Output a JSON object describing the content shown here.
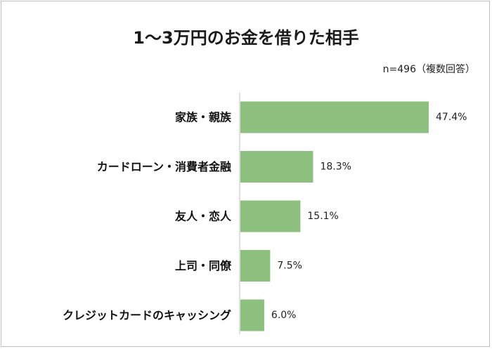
{
  "chart_data": {
    "type": "bar",
    "orientation": "horizontal",
    "title": "1〜3万円のお金を借りた相手",
    "note": "n=496（複数回答）",
    "categories": [
      "家族・親族",
      "カードローン・消費者金融",
      "友人・恋人",
      "上司・同僚",
      "クレジットカードのキャッシング"
    ],
    "values": [
      47.4,
      18.3,
      15.1,
      7.5,
      6.0
    ],
    "value_labels": [
      "47.4%",
      "18.3%",
      "15.1%",
      "7.5%",
      "6.0%"
    ],
    "unit": "%",
    "xlim": [
      0,
      50
    ],
    "grid": false,
    "legend": "none",
    "bar_color": "#8dbf7f"
  }
}
